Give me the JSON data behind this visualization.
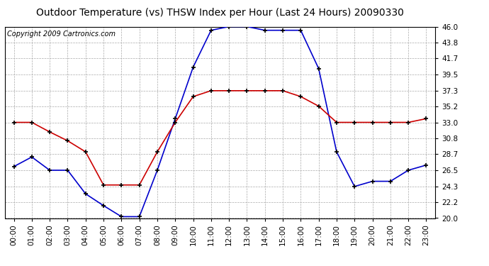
{
  "title": "Outdoor Temperature (vs) THSW Index per Hour (Last 24 Hours) 20090330",
  "copyright": "Copyright 2009 Cartronics.com",
  "hours": [
    "00:00",
    "01:00",
    "02:00",
    "03:00",
    "04:00",
    "05:00",
    "06:00",
    "07:00",
    "08:00",
    "09:00",
    "10:00",
    "11:00",
    "12:00",
    "13:00",
    "14:00",
    "15:00",
    "16:00",
    "17:00",
    "18:00",
    "19:00",
    "20:00",
    "21:00",
    "22:00",
    "23:00"
  ],
  "blue_data": [
    27.0,
    28.3,
    26.5,
    26.5,
    23.3,
    21.7,
    20.2,
    20.2,
    26.5,
    33.5,
    40.5,
    45.5,
    46.0,
    46.0,
    45.5,
    45.5,
    45.5,
    40.3,
    29.0,
    24.3,
    25.0,
    25.0,
    26.5,
    27.2
  ],
  "red_data": [
    33.0,
    33.0,
    31.7,
    30.5,
    29.0,
    24.5,
    24.5,
    24.5,
    29.0,
    33.0,
    36.5,
    37.3,
    37.3,
    37.3,
    37.3,
    37.3,
    36.5,
    35.2,
    33.0,
    33.0,
    33.0,
    33.0,
    33.0,
    33.5
  ],
  "blue_color": "#0000cc",
  "red_color": "#cc0000",
  "bg_color": "#ffffff",
  "plot_bg_color": "#ffffff",
  "grid_color": "#aaaaaa",
  "ylim": [
    20.0,
    46.0
  ],
  "yticks": [
    20.0,
    22.2,
    24.3,
    26.5,
    28.7,
    30.8,
    33.0,
    35.2,
    37.3,
    39.5,
    41.7,
    43.8,
    46.0
  ],
  "title_fontsize": 10,
  "copyright_fontsize": 7,
  "tick_fontsize": 7.5
}
